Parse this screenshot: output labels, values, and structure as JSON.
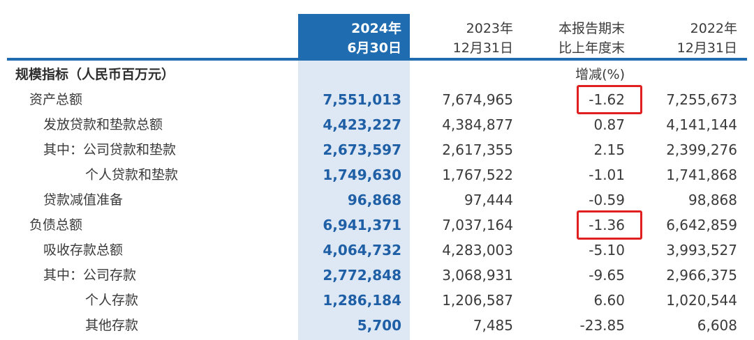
{
  "header": {
    "col1": [
      "2024年",
      "6月30日"
    ],
    "col2": [
      "2023年",
      "12月31日"
    ],
    "col3": [
      "本报告期末",
      "比上年度末"
    ],
    "col4": [
      "2022年",
      "12月31日"
    ]
  },
  "section_title": "规模指标（人民币百万元）",
  "pct_note": "增减(%)",
  "rows": [
    {
      "label": "资产总额",
      "v1": "7,551,013",
      "v2": "7,674,965",
      "v3": "-1.62",
      "v4": "7,255,673"
    },
    {
      "label": "发放贷款和垫款总额",
      "v1": "4,423,227",
      "v2": "4,384,877",
      "v3": "0.87",
      "v4": "4,141,144"
    },
    {
      "label": "其中：公司贷款和垫款",
      "v1": "2,673,597",
      "v2": "2,617,355",
      "v3": "2.15",
      "v4": "2,399,276"
    },
    {
      "label": "个人贷款和垫款",
      "v1": "1,749,630",
      "v2": "1,767,522",
      "v3": "-1.01",
      "v4": "1,741,868"
    },
    {
      "label": "贷款减值准备",
      "v1": "96,868",
      "v2": "97,444",
      "v3": "-0.59",
      "v4": "98,868"
    },
    {
      "label": "负债总额",
      "v1": "6,941,371",
      "v2": "7,037,164",
      "v3": "-1.36",
      "v4": "6,642,859"
    },
    {
      "label": "吸收存款总额",
      "v1": "4,064,732",
      "v2": "4,283,003",
      "v3": "-5.10",
      "v4": "3,993,527"
    },
    {
      "label": "其中：公司存款",
      "v1": "2,772,848",
      "v2": "3,068,931",
      "v3": "-9.65",
      "v4": "2,966,375"
    },
    {
      "label": "个人存款",
      "v1": "1,286,184",
      "v2": "1,206,587",
      "v3": "6.60",
      "v4": "1,020,544"
    },
    {
      "label": "其他存款",
      "v1": "5,700",
      "v2": "7,485",
      "v3": "-23.85",
      "v4": "6,608"
    }
  ],
  "colors": {
    "accent": "#1f6cb0",
    "highlight_bg": "#dde8f4",
    "value_blue": "#1f5fa6",
    "box_red": "#e02020"
  }
}
